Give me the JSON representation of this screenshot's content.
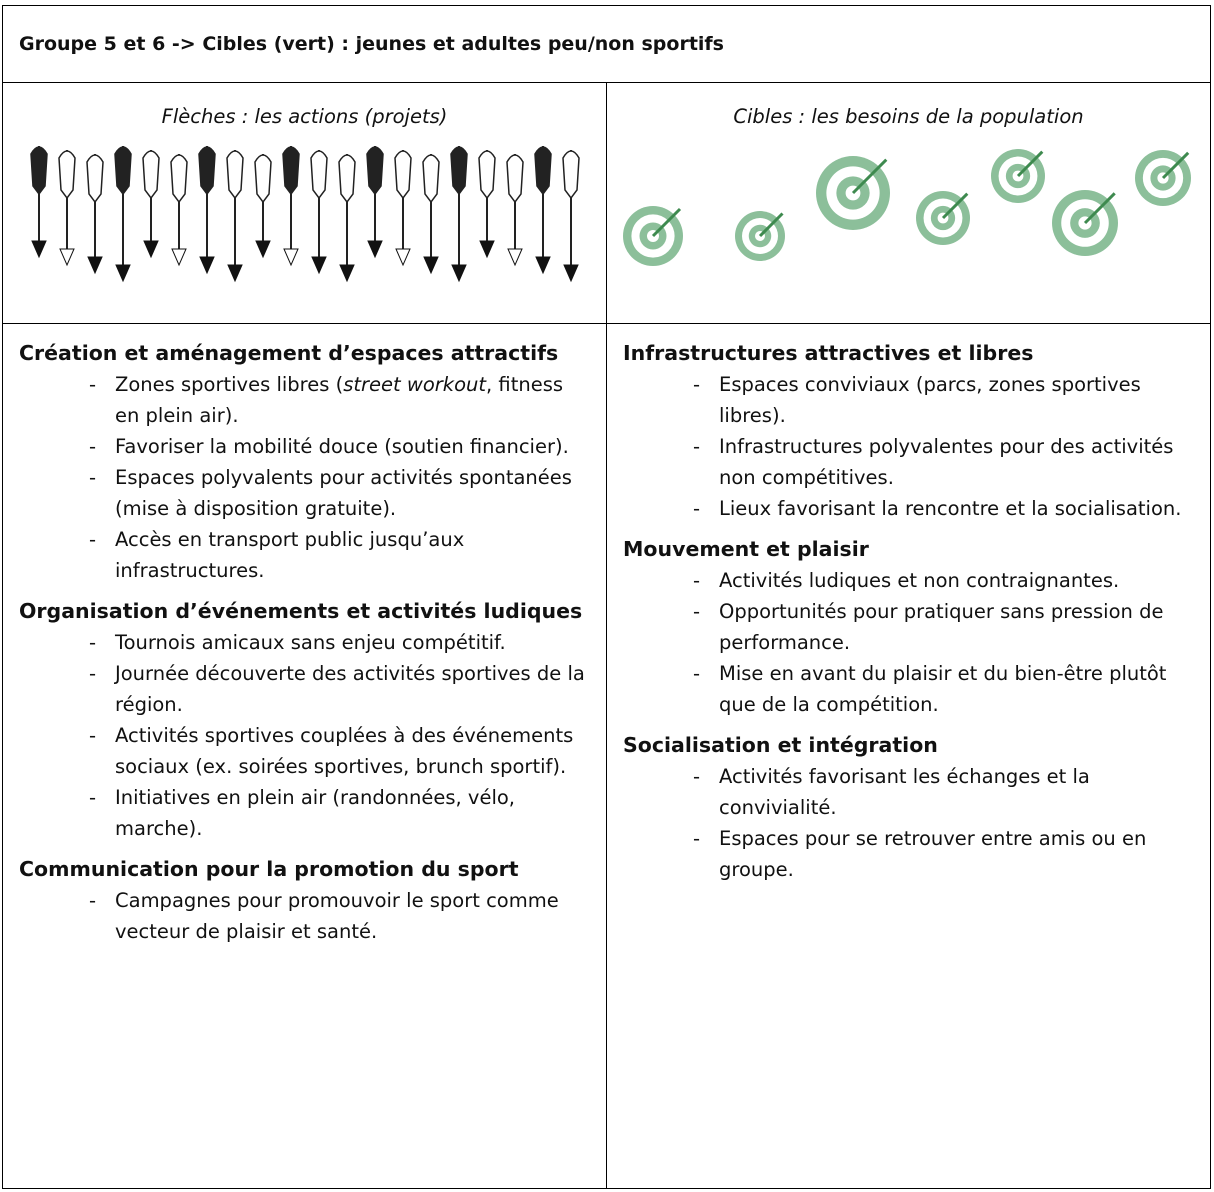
{
  "header": {
    "title": "Groupe 5 et 6 -> Cibles (vert) : jeunes et adultes peu/non sportifs"
  },
  "columns": [
    {
      "caption": "Flèches : les actions (projets)",
      "sections": [
        {
          "heading": "Création et aménagement d’espaces attractifs",
          "items": [
            {
              "parts": [
                "Zones sportives libres (",
                "street workout",
                ", fitness en plein air)."
              ]
            },
            "Favoriser la mobilité douce (soutien financier).",
            "Espaces polyvalents pour activités spontanées (mise à disposition gratuite).",
            "Accès en transport public jusqu’aux infrastructures."
          ]
        },
        {
          "heading": "Organisation d’événements et activités ludiques",
          "items": [
            "Tournois amicaux sans enjeu compétitif.",
            "Journée découverte des activités sportives de la région.",
            "Activités sportives couplées à des événements sociaux (ex. soirées sportives, brunch sportif).",
            "Initiatives en plein air (randonnées, vélo, marche)."
          ]
        },
        {
          "heading": "Communication pour la promotion du sport",
          "items": [
            "Campagnes pour promouvoir le sport comme vecteur de plaisir et santé."
          ]
        }
      ]
    },
    {
      "caption": "Cibles : les besoins de la population",
      "sections": [
        {
          "heading": "Infrastructures attractives et libres",
          "items": [
            "Espaces conviviaux (parcs, zones sportives libres).",
            "Infrastructures polyvalentes pour des activités non compétitives.",
            "Lieux favorisant la rencontre et la socialisation."
          ]
        },
        {
          "heading": "Mouvement et plaisir",
          "items": [
            "Activités ludiques et non contraignantes.",
            "Opportunités pour pratiquer sans pression de performance.",
            "Mise en avant du plaisir et du bien-être plutôt que de la compétition."
          ]
        },
        {
          "heading": "Socialisation et intégration",
          "items": [
            "Activités favorisant les échanges et la convivialité.",
            "Espaces pour se retrouver entre amis ou en groupe."
          ]
        }
      ]
    }
  ]
}
